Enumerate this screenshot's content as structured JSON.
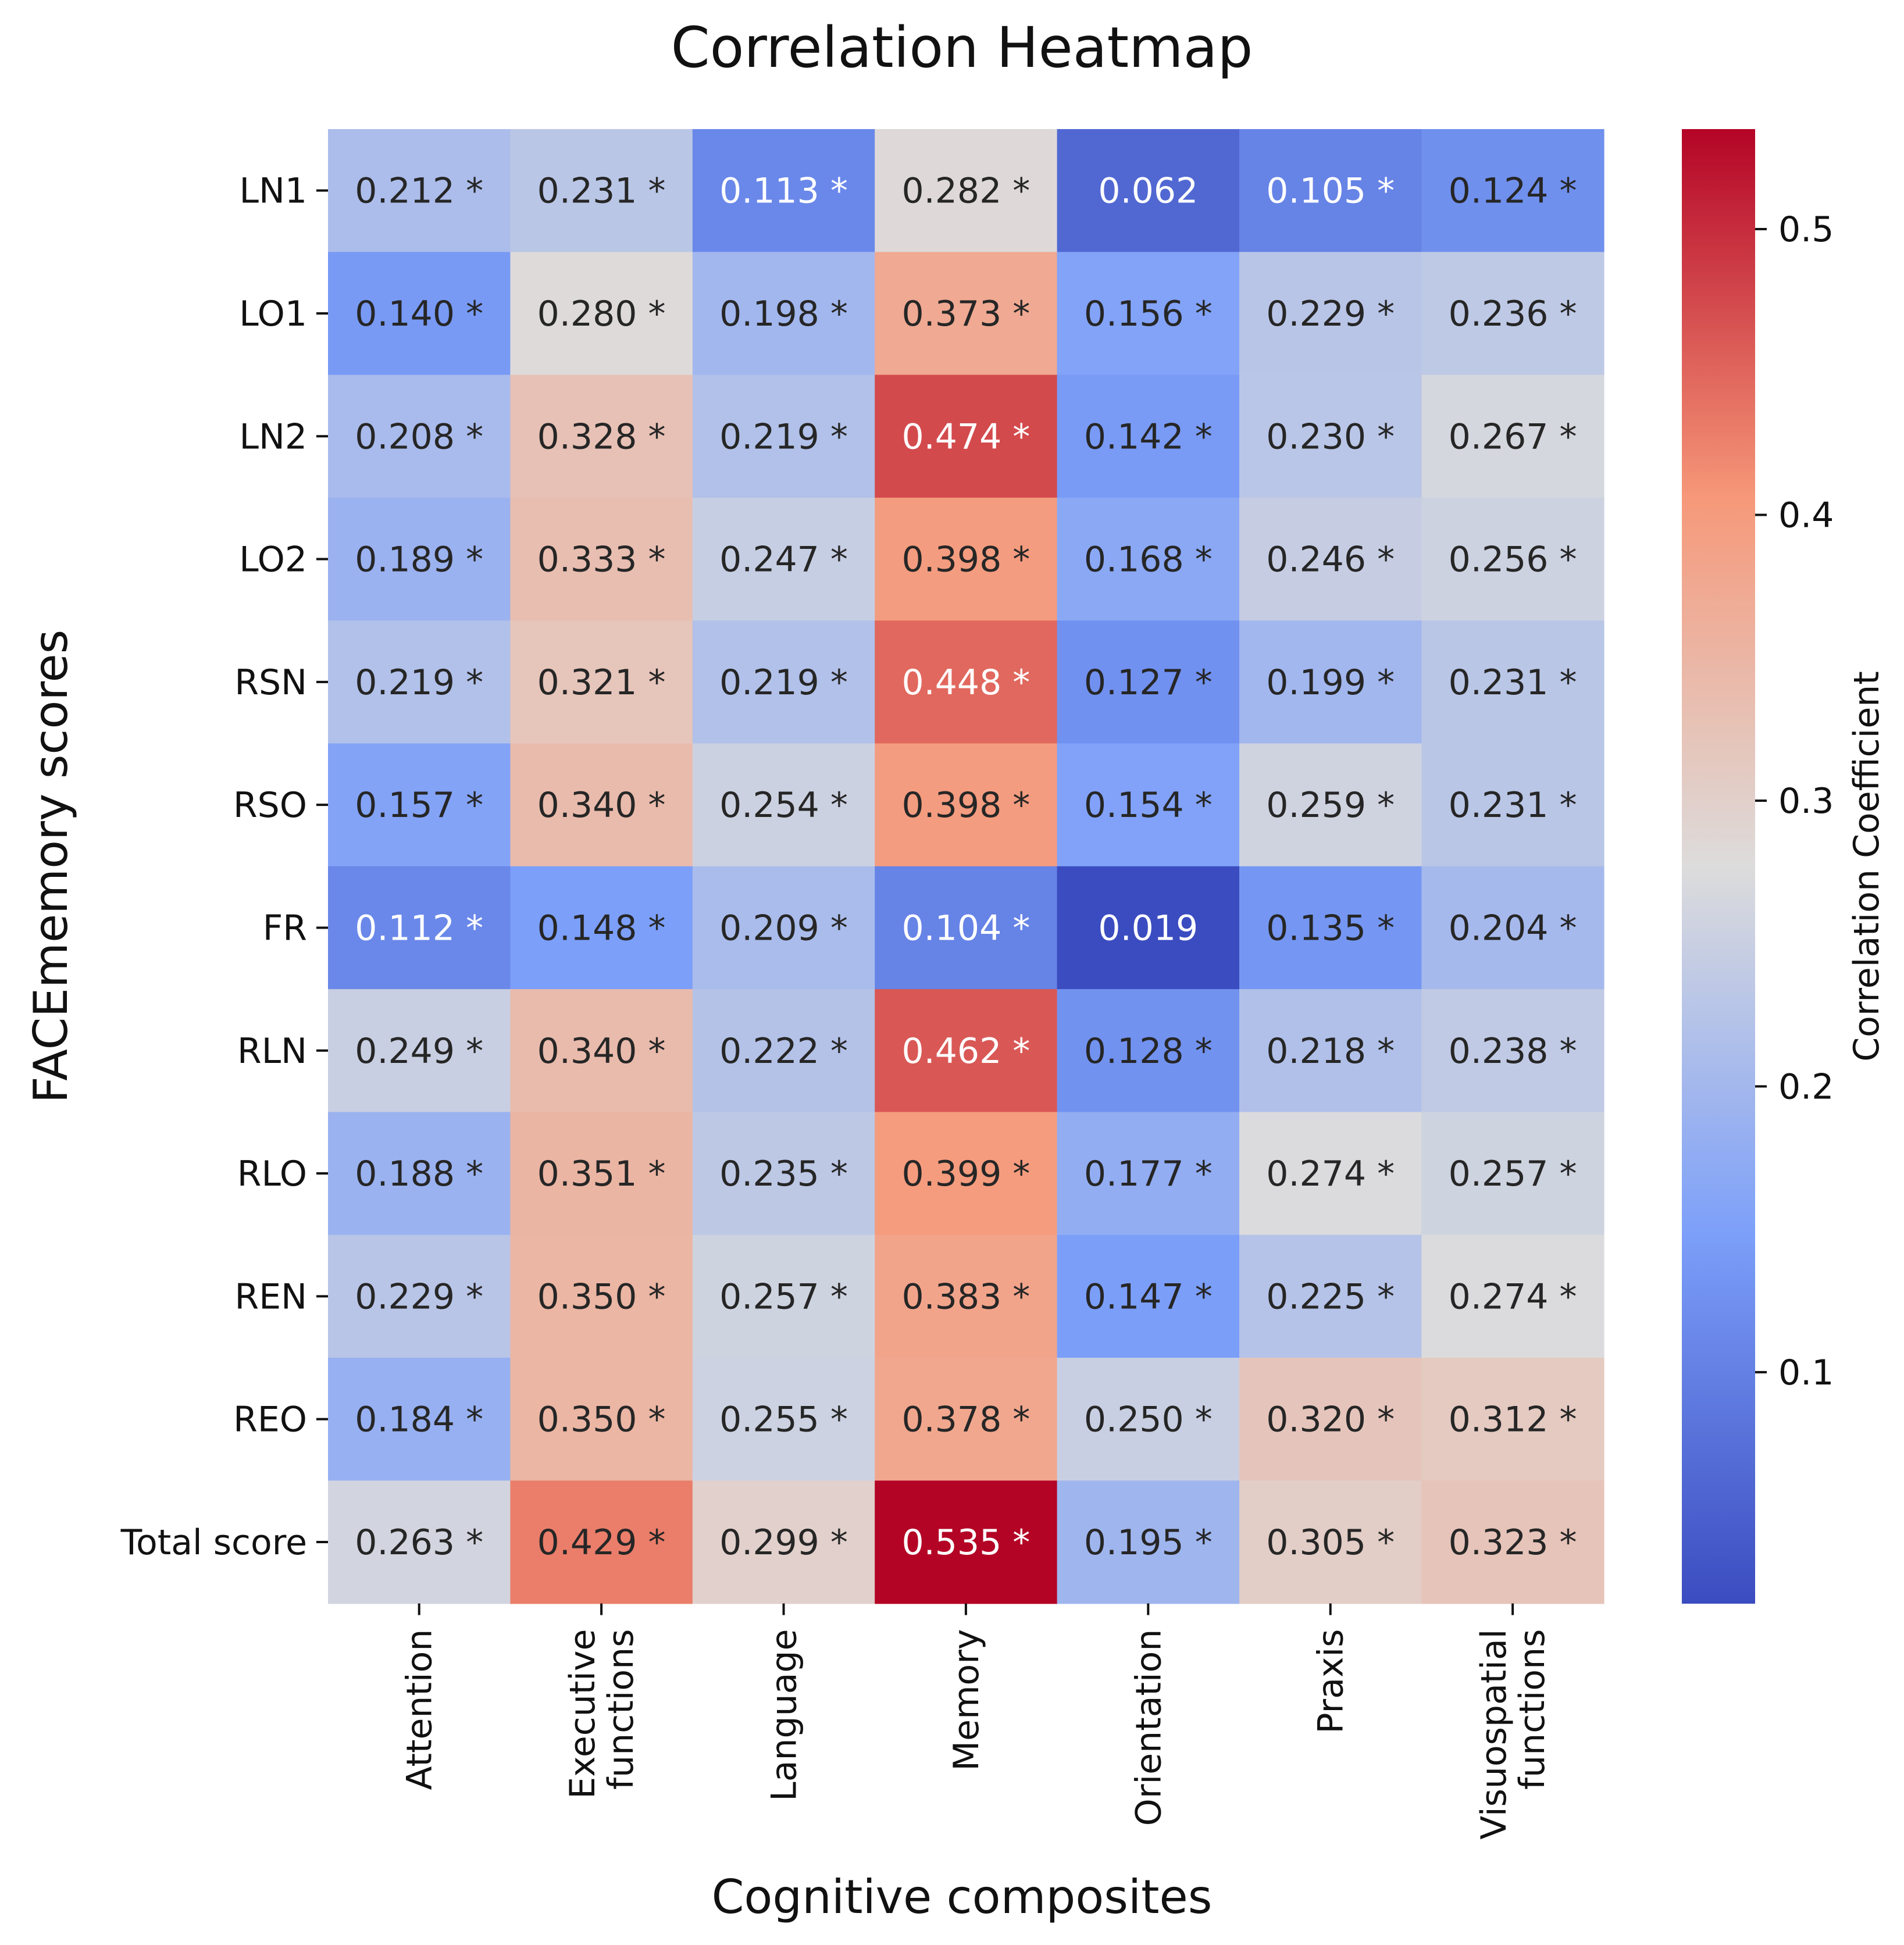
{
  "chart_data": {
    "type": "heatmap",
    "title": "Correlation Heatmap",
    "xlabel": "Cognitive composites",
    "ylabel": "FACEmemory scores",
    "colorbar_label": "Correlation Coefficient",
    "colormap": "coolwarm",
    "vmin": 0.019,
    "vmax": 0.535,
    "colorbar_ticks": [
      0.1,
      0.2,
      0.3,
      0.4,
      0.5
    ],
    "colorbar_tick_labels": [
      "0.1",
      "0.2",
      "0.3",
      "0.4",
      "0.5"
    ],
    "significance_marker": "*",
    "columns": [
      [
        "Attention"
      ],
      [
        "Executive",
        "functions"
      ],
      [
        "Language"
      ],
      [
        "Memory"
      ],
      [
        "Orientation"
      ],
      [
        "Praxis"
      ],
      [
        "Visuospatial",
        "functions"
      ]
    ],
    "rows": [
      "LN1",
      "LO1",
      "LN2",
      "LO2",
      "RSN",
      "RSO",
      "FR",
      "RLN",
      "RLO",
      "REN",
      "REO",
      "Total score"
    ],
    "cell_labels": [
      [
        "0.212 *",
        "0.231 *",
        "0.113 *",
        "0.282 *",
        "0.062",
        "0.105 *",
        "0.124 *"
      ],
      [
        "0.140 *",
        "0.280 *",
        "0.198 *",
        "0.373 *",
        "0.156 *",
        "0.229 *",
        "0.236 *"
      ],
      [
        "0.208 *",
        "0.328 *",
        "0.219 *",
        "0.474 *",
        "0.142 *",
        "0.230 *",
        "0.267 *"
      ],
      [
        "0.189 *",
        "0.333 *",
        "0.247 *",
        "0.398 *",
        "0.168 *",
        "0.246 *",
        "0.256 *"
      ],
      [
        "0.219 *",
        "0.321 *",
        "0.219 *",
        "0.448 *",
        "0.127 *",
        "0.199 *",
        "0.231 *"
      ],
      [
        "0.157 *",
        "0.340 *",
        "0.254 *",
        "0.398 *",
        "0.154 *",
        "0.259 *",
        "0.231 *"
      ],
      [
        "0.112 *",
        "0.148 *",
        "0.209 *",
        "0.104 *",
        "0.019",
        "0.135 *",
        "0.204 *"
      ],
      [
        "0.249 *",
        "0.340 *",
        "0.222 *",
        "0.462 *",
        "0.128 *",
        "0.218 *",
        "0.238 *"
      ],
      [
        "0.188 *",
        "0.351 *",
        "0.235 *",
        "0.399 *",
        "0.177 *",
        "0.274 *",
        "0.257 *"
      ],
      [
        "0.229 *",
        "0.350 *",
        "0.257 *",
        "0.383 *",
        "0.147 *",
        "0.225 *",
        "0.274 *"
      ],
      [
        "0.184 *",
        "0.350 *",
        "0.255 *",
        "0.378 *",
        "0.250 *",
        "0.320 *",
        "0.312 *"
      ],
      [
        "0.263 *",
        "0.429 *",
        "0.299 *",
        "0.535 *",
        "0.195 *",
        "0.305 *",
        "0.323 *"
      ]
    ]
  }
}
